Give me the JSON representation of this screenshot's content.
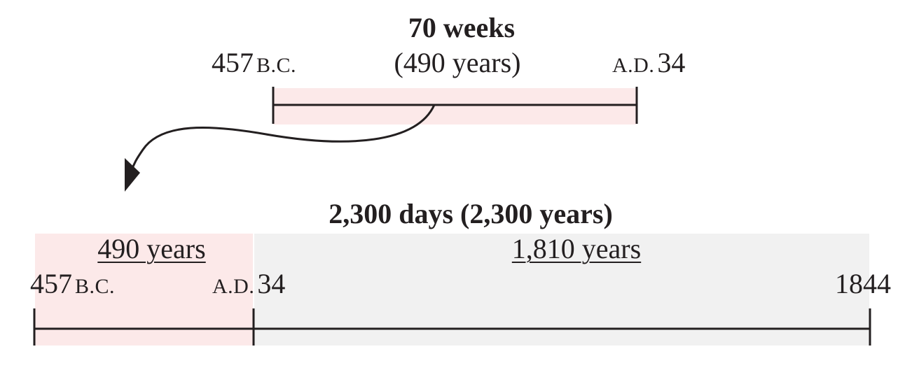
{
  "top_timeline": {
    "title": "70 weeks",
    "subtitle": "(490 years)",
    "start_year": "457",
    "start_era": "B.C.",
    "end_era": "A.D.",
    "end_year": "34"
  },
  "bottom_timeline": {
    "title": "2,300 days (2,300 years)",
    "segment_1_label": "490 years",
    "segment_2_label": "1,810 years",
    "start_year": "457",
    "start_era": "B.C.",
    "mid_era": "A.D.",
    "mid_year": "34",
    "end_year": "1844"
  },
  "colors": {
    "highlight_pink": "#fce9e9",
    "highlight_gray": "#f1f1f1",
    "ink": "#231f20"
  }
}
